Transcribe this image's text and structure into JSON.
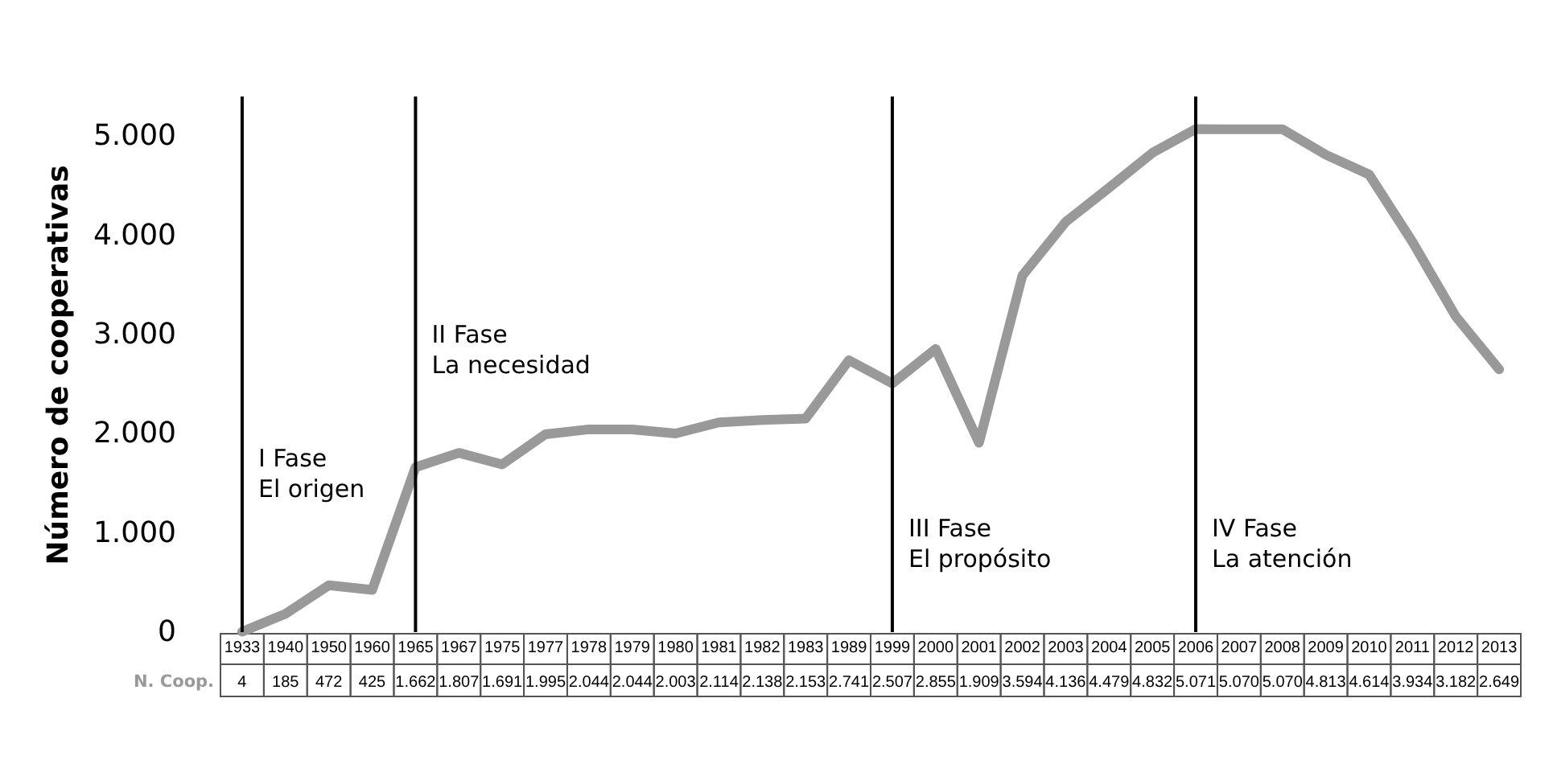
{
  "chart_data": {
    "type": "line",
    "ylabel": "Número de cooperativas",
    "categories": [
      "1933",
      "1940",
      "1950",
      "1960",
      "1965",
      "1967",
      "1975",
      "1977",
      "1978",
      "1979",
      "1980",
      "1981",
      "1982",
      "1983",
      "1989",
      "1999",
      "2000",
      "2001",
      "2002",
      "2003",
      "2004",
      "2005",
      "2006",
      "2007",
      "2008",
      "2009",
      "2010",
      "2011",
      "2012",
      "2013"
    ],
    "series": [
      {
        "name": "N. Coop.",
        "color": "#999999",
        "values": [
          4,
          185,
          472,
          425,
          1662,
          1807,
          1691,
          1995,
          2044,
          2044,
          2003,
          2114,
          2138,
          2153,
          2741,
          2507,
          2855,
          1909,
          3594,
          4136,
          4479,
          4832,
          5071,
          5070,
          5070,
          4813,
          4614,
          3934,
          3182,
          2649
        ],
        "value_labels": [
          "4",
          "185",
          "472",
          "425",
          "1.662",
          "1.807",
          "1.691",
          "1.995",
          "2.044",
          "2.044",
          "2.003",
          "2.114",
          "2.138",
          "2.153",
          "2.741",
          "2.507",
          "2.855",
          "1.909",
          "3.594",
          "4.136",
          "4.479",
          "4.832",
          "5.071",
          "5.070",
          "5.070",
          "4.813",
          "4.614",
          "3.934",
          "3.182",
          "2.649"
        ]
      }
    ],
    "ylim": [
      0,
      5400
    ],
    "yticks": [
      0,
      {
        "value": 1000,
        "label": "1.000"
      },
      {
        "value": 2000,
        "label": "2.000"
      },
      {
        "value": 3000,
        "label": "3.000"
      },
      {
        "value": 4000,
        "label": "4.000"
      },
      {
        "value": 5000,
        "label": "5.000"
      }
    ],
    "grid": false,
    "line_style": "solid",
    "marker": "none",
    "ref_lines": [
      {
        "axis": "x",
        "value": "1933",
        "label": "I Fase\nEl origen",
        "color": "#000000"
      },
      {
        "axis": "x",
        "value": "1965",
        "label": "II Fase\nLa necesidad",
        "color": "#000000"
      },
      {
        "axis": "x",
        "value": "1999",
        "label": "III Fase\nEl propósito",
        "color": "#000000"
      },
      {
        "axis": "x",
        "value": "2006",
        "label": "IV Fase\nLa atención",
        "color": "#000000"
      }
    ]
  }
}
